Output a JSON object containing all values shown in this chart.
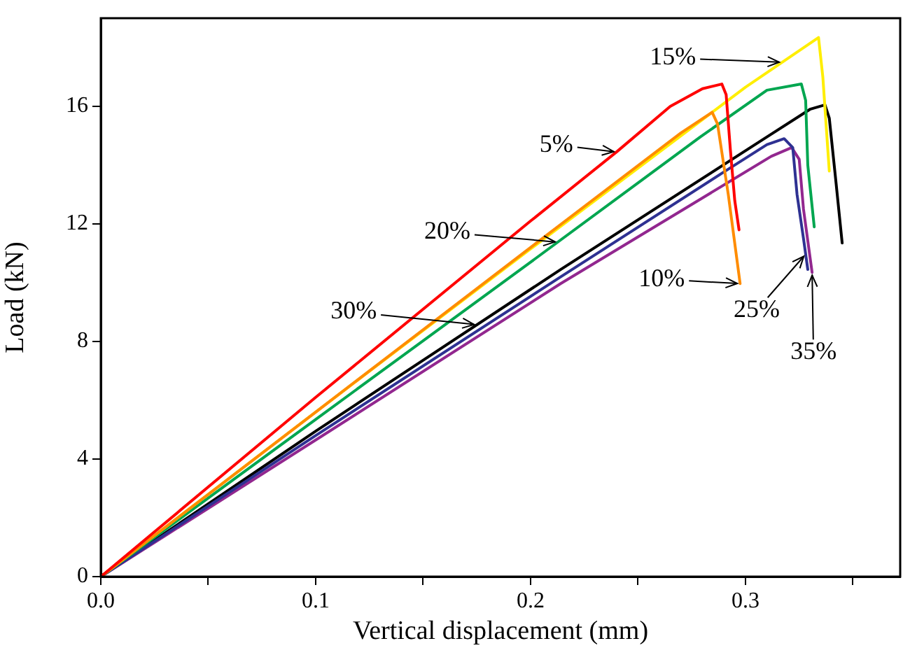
{
  "chart_data": {
    "type": "line",
    "xlabel": "Vertical displacement (mm)",
    "ylabel": "Load (kN)",
    "xlim": [
      0,
      0.372
    ],
    "ylim": [
      0,
      19
    ],
    "xticks": [
      {
        "value": 0,
        "label": "0.0"
      },
      {
        "value": 0.05,
        "label": null
      },
      0.1,
      {
        "value": 0.15,
        "label": null
      },
      0.2,
      {
        "value": 0.25,
        "label": null
      },
      0.3,
      {
        "value": 0.35,
        "label": null
      }
    ],
    "yticks": [
      0,
      4,
      8,
      12,
      16
    ],
    "grid": false,
    "legend": false,
    "marker": "none",
    "line_style": "solid",
    "series": [
      {
        "color": "#ff0000",
        "x": [
          0,
          0.1,
          0.2,
          0.24,
          0.265,
          0.28,
          0.289,
          0.291,
          0.293,
          0.295,
          0.297
        ],
        "values": [
          0,
          6.1,
          12.1,
          14.45,
          16.0,
          16.6,
          16.76,
          16.4,
          14.5,
          12.8,
          11.8
        ]
      },
      {
        "color": "#ff8c00",
        "x": [
          0,
          0.1,
          0.2,
          0.27,
          0.2845,
          0.287,
          0.292,
          0.2975
        ],
        "values": [
          0,
          5.6,
          11.2,
          15.1,
          15.8,
          15.4,
          13,
          9.97
        ]
      },
      {
        "color": "#ffee00",
        "x": [
          0,
          0.1,
          0.2,
          0.3,
          0.334,
          0.336,
          0.339
        ],
        "values": [
          0,
          5.6,
          11.15,
          16.65,
          18.34,
          17,
          13.8
        ]
      },
      {
        "color": "#00a650",
        "x": [
          0,
          0.1,
          0.2,
          0.279,
          0.31,
          0.326,
          0.328,
          0.329,
          0.332
        ],
        "values": [
          0,
          5.35,
          10.7,
          14.96,
          16.55,
          16.76,
          16.2,
          14,
          11.9
        ]
      },
      {
        "color": "#2e3192",
        "x": [
          0,
          0.1,
          0.214,
          0.29,
          0.31,
          0.318,
          0.322,
          0.324,
          0.327,
          0.329
        ],
        "values": [
          0,
          4.8,
          10.2,
          13.77,
          14.7,
          14.9,
          14.6,
          13,
          11.5,
          10.45
        ]
      },
      {
        "color": "#000000",
        "x": [
          0,
          0.1,
          0.214,
          0.31,
          0.33,
          0.337,
          0.339,
          0.342,
          0.345
        ],
        "values": [
          0,
          4.95,
          10.45,
          14.96,
          15.9,
          16.05,
          15.6,
          13.5,
          11.35
        ]
      },
      {
        "color": "#92278f",
        "x": [
          0,
          0.1,
          0.214,
          0.312,
          0.3215,
          0.325,
          0.327,
          0.331
        ],
        "values": [
          0,
          4.65,
          9.97,
          14.3,
          14.6,
          14.2,
          12.5,
          10.35
        ]
      }
    ],
    "annotations": [
      {
        "text": "5%",
        "x": 0.24,
        "y": 14.45
      },
      {
        "text": "10%",
        "x": 0.2975,
        "y": 9.97
      },
      "15%",
      "20%",
      {
        "text": "25%",
        "x": 0.328,
        "y": 10.97
      },
      "30%",
      {
        "text": "35%",
        "x": 0.331,
        "y": 10.35
      }
    ]
  }
}
